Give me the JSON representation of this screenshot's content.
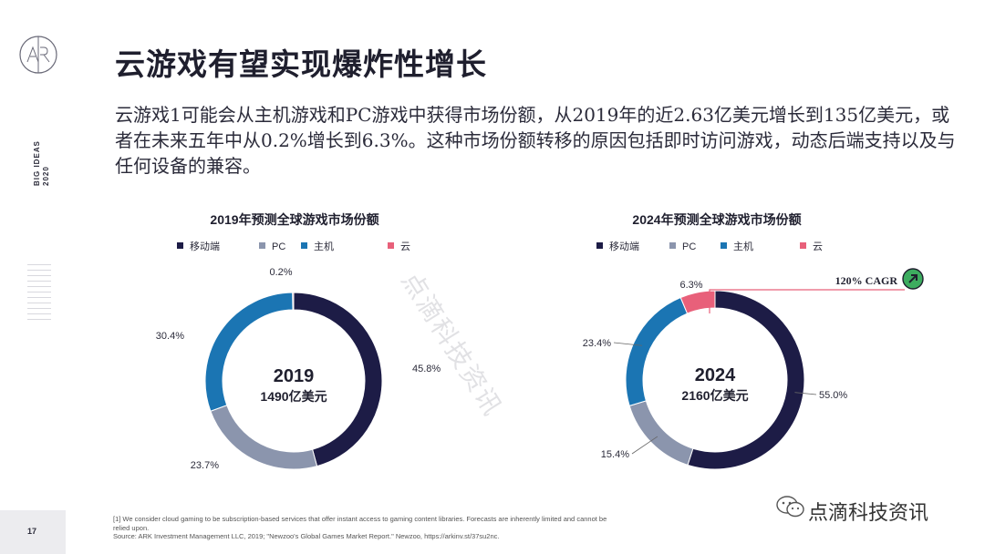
{
  "sidebar": {
    "logo_text": "ARK",
    "side_label_line1": "BIG IDEAS",
    "side_label_line2": "2020",
    "page_number": "17"
  },
  "title": "云游戏有望实现爆炸性增长",
  "body": "云游戏1可能会从主机游戏和PC游戏中获得市场份额，从2019年的近2.63亿美元增长到135亿美元，或者在未来五年中从0.2%增长到6.3%。这种市场份额转移的原因包括即时访问游戏，动态后端支持以及与任何设备的兼容。",
  "footnote": {
    "line1": "[1] We consider cloud gaming to be subscription-based services that offer instant access to gaming content libraries. Forecasts are inherently limited and cannot be relied upon.",
    "line2": "Source: ARK Investment Management LLC, 2019; \"Newzoo's Global Games Market Report.\" Newzoo, https://arkinv.st/37su2nc."
  },
  "watermark": "点滴科技资讯",
  "wechat_name": "点滴科技资讯",
  "colors": {
    "mobile": "#1d1c46",
    "pc": "#8b95ad",
    "console": "#1b75b3",
    "cloud": "#e8607a",
    "cagr_circle": "#3dac5f"
  },
  "chart_data": [
    {
      "type": "pie",
      "variant": "donut",
      "title": "2019年预测全球游戏市场份额",
      "categories": [
        "移动端",
        "PC",
        "主机",
        "云"
      ],
      "values": [
        45.8,
        23.7,
        30.4,
        0.2
      ],
      "value_labels": [
        "45.8%",
        "23.7%",
        "30.4%",
        "0.2%"
      ],
      "center_year": "2019",
      "center_total": "1490亿美元"
    },
    {
      "type": "pie",
      "variant": "donut",
      "title": "2024年预测全球游戏市场份额",
      "categories": [
        "移动端",
        "PC",
        "主机",
        "云"
      ],
      "values": [
        55.0,
        15.4,
        23.4,
        6.3
      ],
      "value_labels": [
        "55.0%",
        "15.4%",
        "23.4%",
        "6.3%"
      ],
      "center_year": "2024",
      "center_total": "2160亿美元",
      "annotation": "120% CAGR"
    }
  ]
}
